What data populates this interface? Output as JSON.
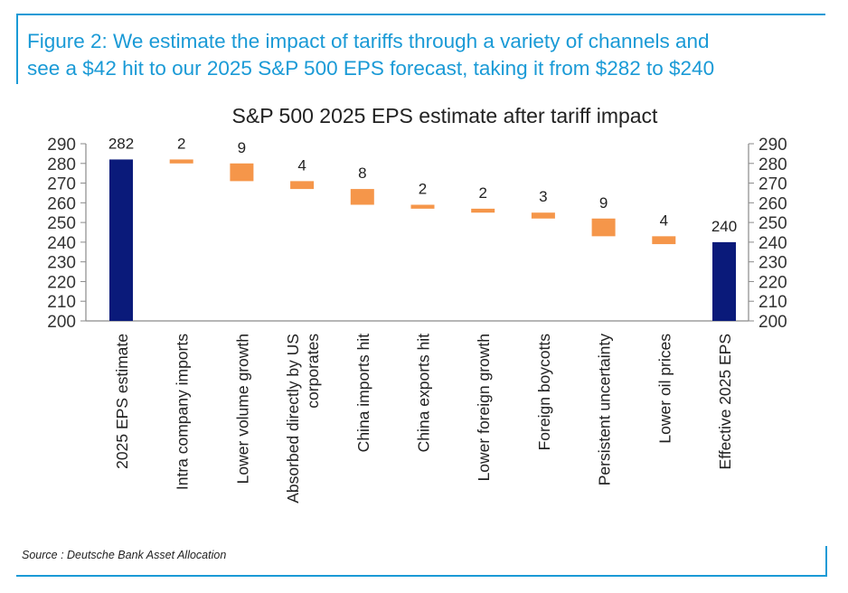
{
  "header": {
    "title_line1": "Figure 2: We estimate the impact of tariffs through a variety of channels and",
    "title_line2": "see a $42 hit to our 2025 S&P 500 EPS forecast, taking it from $282 to $240"
  },
  "footer": {
    "source": "Source : Deutsche Bank Asset Allocation"
  },
  "colors": {
    "accent": "#1a9ad6",
    "total_bar": "#0a1a7a",
    "impact_bar": "#f5964a"
  },
  "chart_data": {
    "type": "waterfall",
    "title": "S&P 500 2025 EPS estimate after tariff impact",
    "ylim": [
      200,
      290
    ],
    "yticks": [
      200,
      210,
      220,
      230,
      240,
      250,
      260,
      270,
      280,
      290
    ],
    "ticks_on_both_sides": true,
    "grid": false,
    "categories": [
      {
        "label": [
          "2025 EPS estimate"
        ],
        "kind": "total",
        "value": 282,
        "data_label": "282"
      },
      {
        "label": [
          "Intra company imports"
        ],
        "kind": "decrease",
        "value": 2,
        "data_label": "2"
      },
      {
        "label": [
          "Lower volume growth"
        ],
        "kind": "decrease",
        "value": 9,
        "data_label": "9"
      },
      {
        "label": [
          "Absorbed directly by US",
          "corporates"
        ],
        "kind": "decrease",
        "value": 4,
        "data_label": "4"
      },
      {
        "label": [
          "China imports hit"
        ],
        "kind": "decrease",
        "value": 8,
        "data_label": "8"
      },
      {
        "label": [
          "China exports hit"
        ],
        "kind": "decrease",
        "value": 2,
        "data_label": "2"
      },
      {
        "label": [
          "Lower foreign growth"
        ],
        "kind": "decrease",
        "value": 2,
        "data_label": "2"
      },
      {
        "label": [
          "Foreign boycotts"
        ],
        "kind": "decrease",
        "value": 3,
        "data_label": "3"
      },
      {
        "label": [
          "Persistent uncertainty"
        ],
        "kind": "decrease",
        "value": 9,
        "data_label": "9"
      },
      {
        "label": [
          "Lower oil prices"
        ],
        "kind": "decrease",
        "value": 4,
        "data_label": "4"
      },
      {
        "label": [
          "Effective 2025 EPS"
        ],
        "kind": "total",
        "value": 240,
        "data_label": "240"
      }
    ]
  }
}
